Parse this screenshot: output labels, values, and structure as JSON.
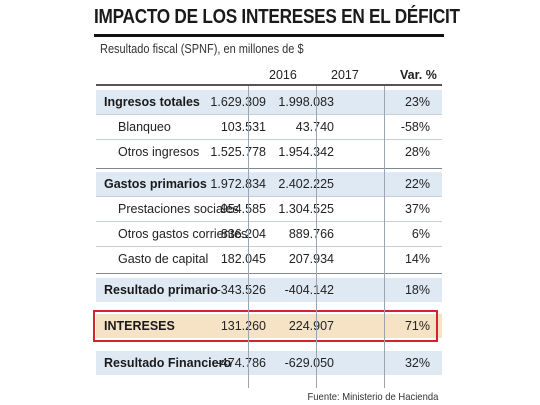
{
  "title": "IMPACTO DE LOS INTERESES EN EL DÉFICIT",
  "subtitle": "Resultado fiscal (SPNF), en millones de $",
  "columns": {
    "c2016": "2016",
    "c2017": "2017",
    "var": "Var. %"
  },
  "rows": [
    {
      "label": "Ingresos totales",
      "v2016": "1.629.309",
      "v2017": "1.998.083",
      "var": "23%"
    },
    {
      "label": "Blanqueo",
      "v2016": "103.531",
      "v2017": "43.740",
      "var": "-58%"
    },
    {
      "label": "Otros ingresos",
      "v2016": "1.525.778",
      "v2017": "1.954.342",
      "var": "28%"
    },
    {
      "label": "Gastos primarios",
      "v2016": "1.972.834",
      "v2017": "2.402.225",
      "var": "22%"
    },
    {
      "label": "Prestaciones sociales",
      "v2016": "954.585",
      "v2017": "1.304.525",
      "var": "37%"
    },
    {
      "label": "Otros gastos corrientes",
      "v2016": "836.204",
      "v2017": "889.766",
      "var": "6%"
    },
    {
      "label": "Gasto de capital",
      "v2016": "182.045",
      "v2017": "207.934",
      "var": "14%"
    },
    {
      "label": "Resultado primario",
      "v2016": "-343.526",
      "v2017": "-404.142",
      "var": "18%"
    },
    {
      "label": "INTERESES",
      "v2016": "131.260",
      "v2017": "224.907",
      "var": "71%"
    },
    {
      "label": "Resultado Financiero",
      "v2016": "-474.786",
      "v2017": "-629.050",
      "var": "32%"
    }
  ],
  "source": "Fuente: Ministerio de Hacienda",
  "colors": {
    "group_row": "#dfe9f4",
    "highlight_row": "#f6e3c6",
    "highlight_border": "#d5222b"
  }
}
